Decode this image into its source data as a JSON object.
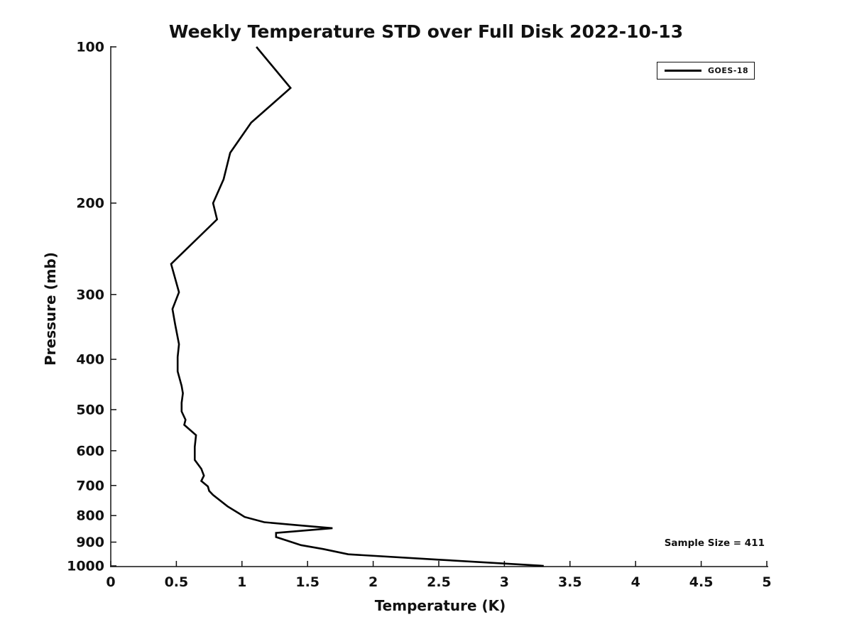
{
  "chart_data": {
    "type": "line",
    "title": "Weekly Temperature STD over Full Disk 2022-10-13",
    "xlabel": "Temperature (K)",
    "ylabel": "Pressure (mb)",
    "xlim": [
      0,
      5
    ],
    "ylim": [
      100,
      1000
    ],
    "y_scale": "log",
    "y_inverted": true,
    "grid": false,
    "x_ticks": [
      0,
      0.5,
      1,
      1.5,
      2,
      2.5,
      3,
      3.5,
      4,
      4.5,
      5
    ],
    "x_tick_labels": [
      "0",
      "0.5",
      "1",
      "1.5",
      "2",
      "2.5",
      "3",
      "3.5",
      "4",
      "4.5",
      "5"
    ],
    "y_ticks": [
      100,
      200,
      300,
      400,
      500,
      600,
      700,
      800,
      900,
      1000
    ],
    "y_tick_labels": [
      "100",
      "200",
      "300",
      "400",
      "500",
      "600",
      "700",
      "800",
      "900",
      "1000"
    ],
    "legend": {
      "position": "top-right",
      "entries": [
        {
          "label": "GOES-18",
          "color": "#000000",
          "line_style": "solid"
        }
      ]
    },
    "annotations": [
      {
        "text": "Sample Size = 411",
        "position": "bottom-right"
      }
    ],
    "series": [
      {
        "name": "GOES-18",
        "color": "#000000",
        "x_name": "temperature_std_K",
        "y_name": "pressure_mb",
        "points": [
          [
            1.11,
            100
          ],
          [
            1.37,
            120
          ],
          [
            1.07,
            140
          ],
          [
            0.91,
            160
          ],
          [
            0.86,
            180
          ],
          [
            0.78,
            200
          ],
          [
            0.81,
            215
          ],
          [
            0.46,
            262
          ],
          [
            0.52,
            297
          ],
          [
            0.47,
            320
          ],
          [
            0.49,
            342
          ],
          [
            0.52,
            374
          ],
          [
            0.51,
            396
          ],
          [
            0.51,
            422
          ],
          [
            0.54,
            450
          ],
          [
            0.55,
            465
          ],
          [
            0.54,
            485
          ],
          [
            0.54,
            504
          ],
          [
            0.57,
            523
          ],
          [
            0.56,
            535
          ],
          [
            0.65,
            560
          ],
          [
            0.64,
            590
          ],
          [
            0.64,
            625
          ],
          [
            0.69,
            650
          ],
          [
            0.71,
            670
          ],
          [
            0.69,
            686
          ],
          [
            0.74,
            703
          ],
          [
            0.75,
            717
          ],
          [
            0.78,
            730
          ],
          [
            0.89,
            768
          ],
          [
            0.98,
            793
          ],
          [
            1.02,
            805
          ],
          [
            1.17,
            824
          ],
          [
            1.43,
            835
          ],
          [
            1.69,
            846
          ],
          [
            1.26,
            864
          ],
          [
            1.26,
            880
          ],
          [
            1.45,
            912
          ],
          [
            1.62,
            928
          ],
          [
            1.81,
            950
          ],
          [
            2.5,
            973
          ],
          [
            3.3,
            1000
          ]
        ]
      }
    ]
  },
  "colors": {
    "background": "#ffffff",
    "axis": "#111111",
    "text": "#111111",
    "series_line": "#000000"
  }
}
